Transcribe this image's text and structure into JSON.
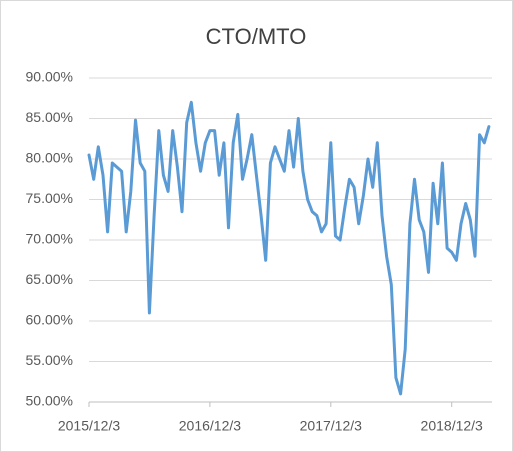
{
  "chart_data": {
    "type": "line",
    "title": "CTO/MTO",
    "categories": [
      "2015/12/3",
      null,
      null,
      null,
      null,
      null,
      null,
      null,
      null,
      null,
      null,
      null,
      null,
      null,
      null,
      null,
      null,
      null,
      null,
      null,
      null,
      null,
      null,
      null,
      null,
      null,
      "2016/12/3",
      null,
      null,
      null,
      null,
      null,
      null,
      null,
      null,
      null,
      null,
      null,
      null,
      null,
      null,
      null,
      null,
      null,
      null,
      null,
      null,
      null,
      null,
      null,
      null,
      null,
      "2017/12/3",
      null,
      null,
      null,
      null,
      null,
      null,
      null,
      null,
      null,
      null,
      null,
      null,
      null,
      null,
      null,
      null,
      null,
      null,
      null,
      null,
      null,
      null,
      null,
      null,
      null,
      "2018/12/3",
      null,
      null,
      null,
      null,
      null,
      null,
      null,
      null
    ],
    "values": [
      80.5,
      77.5,
      81.5,
      78,
      71,
      79.5,
      79,
      78.5,
      71,
      76,
      84.8,
      79.5,
      78.5,
      61,
      73,
      83.5,
      78,
      76,
      83.5,
      79,
      73.5,
      84.5,
      87,
      82,
      78.5,
      82,
      83.5,
      83.5,
      78,
      82,
      71.5,
      82,
      85.5,
      77.5,
      80,
      83,
      78,
      73,
      67.5,
      79.5,
      81.5,
      80,
      78.5,
      83.5,
      79,
      85,
      78.5,
      75,
      73.5,
      73,
      71,
      72,
      82,
      70.5,
      70,
      74,
      77.5,
      76.5,
      72,
      75.5,
      80,
      76.5,
      82,
      73,
      68,
      64.5,
      53,
      51,
      56.5,
      72,
      77.5,
      72.5,
      71,
      66,
      77,
      72,
      79.5,
      69,
      68.5,
      67.5,
      72,
      74.5,
      72.5,
      68,
      83,
      82,
      84
    ],
    "color": "#5b9bd5",
    "ylim": [
      50,
      90
    ],
    "yticks": [
      {
        "value": 50,
        "label": "50.00%"
      },
      {
        "value": 55,
        "label": "55.00%"
      },
      {
        "value": 60,
        "label": "60.00%"
      },
      {
        "value": 65,
        "label": "65.00%"
      },
      {
        "value": 70,
        "label": "70.00%"
      },
      {
        "value": 75,
        "label": "75.00%"
      },
      {
        "value": 80,
        "label": "80.00%"
      },
      {
        "value": 85,
        "label": "85.00%"
      },
      {
        "value": 90,
        "label": "90.00%"
      }
    ],
    "grid": true
  }
}
